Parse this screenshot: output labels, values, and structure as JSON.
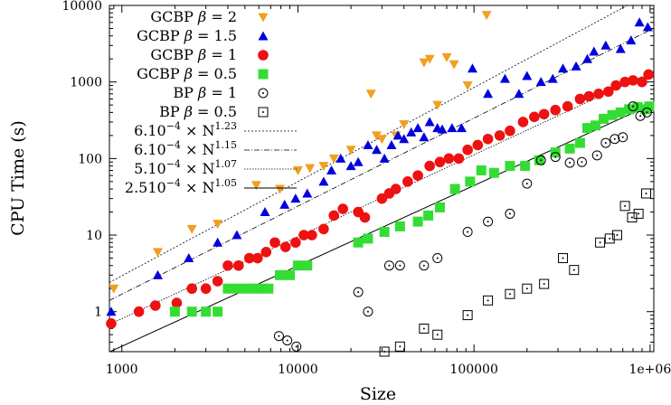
{
  "chart_data": {
    "type": "scatter",
    "title": "",
    "xlabel": "Size",
    "ylabel": "CPU Time (s)",
    "x_scale": "log",
    "y_scale": "log",
    "xlim": [
      850,
      1050000
    ],
    "ylim": [
      0.3,
      10000
    ],
    "x_ticks": [
      {
        "value": 1000,
        "label": "1000"
      },
      {
        "value": 10000,
        "label": "10000"
      },
      {
        "value": 100000,
        "label": "100000"
      },
      {
        "value": 1000000,
        "label": "1e+06"
      }
    ],
    "y_ticks": [
      {
        "value": 1,
        "label": "1"
      },
      {
        "value": 10,
        "label": "10"
      },
      {
        "value": 100,
        "label": "100"
      },
      {
        "value": 1000,
        "label": "1000"
      },
      {
        "value": 10000,
        "label": "10000"
      }
    ],
    "grid": false,
    "legend_position": "top-left",
    "series": [
      {
        "name": "GCBP β = 2",
        "label_main": "GCBP ",
        "label_beta": "β",
        "label_val": " = 2",
        "marker": "triangle-down",
        "color": "#f0a020",
        "points": [
          [
            900,
            2
          ],
          [
            1600,
            6
          ],
          [
            2500,
            12
          ],
          [
            3500,
            14
          ],
          [
            5800,
            45
          ],
          [
            7900,
            40
          ],
          [
            10000,
            70
          ],
          [
            11700,
            75
          ],
          [
            14000,
            80
          ],
          [
            16000,
            100
          ],
          [
            20000,
            130
          ],
          [
            26000,
            700
          ],
          [
            28000,
            200
          ],
          [
            30000,
            180
          ],
          [
            36000,
            200
          ],
          [
            40000,
            280
          ],
          [
            52000,
            1800
          ],
          [
            56000,
            2000
          ],
          [
            62000,
            500
          ],
          [
            70000,
            2100
          ],
          [
            77000,
            1700
          ],
          [
            92000,
            900
          ],
          [
            118000,
            7500
          ]
        ]
      },
      {
        "name": "GCBP β = 1.5",
        "label_main": "GCBP ",
        "label_beta": "β",
        "label_val": " = 1.5",
        "marker": "triangle-up",
        "color": "#0000dd",
        "points": [
          [
            870,
            1
          ],
          [
            1600,
            3
          ],
          [
            2400,
            5
          ],
          [
            3500,
            8
          ],
          [
            4500,
            10
          ],
          [
            6500,
            20
          ],
          [
            8400,
            25
          ],
          [
            9700,
            30
          ],
          [
            11300,
            35
          ],
          [
            14000,
            50
          ],
          [
            15500,
            70
          ],
          [
            17500,
            100
          ],
          [
            20000,
            80
          ],
          [
            22000,
            90
          ],
          [
            25000,
            150
          ],
          [
            28000,
            130
          ],
          [
            31000,
            100
          ],
          [
            34000,
            150
          ],
          [
            37000,
            200
          ],
          [
            40000,
            180
          ],
          [
            44000,
            220
          ],
          [
            48000,
            250
          ],
          [
            52000,
            190
          ],
          [
            56000,
            300
          ],
          [
            62000,
            250
          ],
          [
            66000,
            240
          ],
          [
            75000,
            250
          ],
          [
            85000,
            250
          ],
          [
            98000,
            1500
          ],
          [
            120000,
            700
          ],
          [
            150000,
            1100
          ],
          [
            180000,
            700
          ],
          [
            200000,
            1200
          ],
          [
            240000,
            1000
          ],
          [
            280000,
            1100
          ],
          [
            320000,
            1500
          ],
          [
            380000,
            1600
          ],
          [
            440000,
            2000
          ],
          [
            480000,
            2500
          ],
          [
            560000,
            3000
          ],
          [
            680000,
            2700
          ],
          [
            780000,
            3500
          ],
          [
            870000,
            6000
          ],
          [
            970000,
            5200
          ]
        ]
      },
      {
        "name": "GCBP β = 1",
        "label_main": "GCBP ",
        "label_beta": "β",
        "label_val": " = 1",
        "marker": "circle",
        "color": "#ee1111",
        "points": [
          [
            870,
            0.7
          ],
          [
            1250,
            1
          ],
          [
            1550,
            1.2
          ],
          [
            2050,
            1.3
          ],
          [
            2500,
            2
          ],
          [
            3000,
            2
          ],
          [
            3500,
            2.5
          ],
          [
            4000,
            4
          ],
          [
            4600,
            4
          ],
          [
            5300,
            5
          ],
          [
            5900,
            5
          ],
          [
            6600,
            6
          ],
          [
            7400,
            8
          ],
          [
            8500,
            7
          ],
          [
            9700,
            8
          ],
          [
            10800,
            10
          ],
          [
            12000,
            10
          ],
          [
            14000,
            12
          ],
          [
            16000,
            18
          ],
          [
            18000,
            22
          ],
          [
            22000,
            20
          ],
          [
            24000,
            17
          ],
          [
            30000,
            30
          ],
          [
            33000,
            35
          ],
          [
            36000,
            40
          ],
          [
            42000,
            50
          ],
          [
            48000,
            60
          ],
          [
            56000,
            80
          ],
          [
            64000,
            90
          ],
          [
            72000,
            100
          ],
          [
            82000,
            100
          ],
          [
            92000,
            130
          ],
          [
            105000,
            150
          ],
          [
            120000,
            180
          ],
          [
            140000,
            200
          ],
          [
            160000,
            230
          ],
          [
            190000,
            300
          ],
          [
            220000,
            350
          ],
          [
            250000,
            380
          ],
          [
            290000,
            430
          ],
          [
            340000,
            480
          ],
          [
            400000,
            600
          ],
          [
            450000,
            650
          ],
          [
            510000,
            700
          ],
          [
            580000,
            750
          ],
          [
            640000,
            900
          ],
          [
            720000,
            1000
          ],
          [
            800000,
            1050
          ],
          [
            900000,
            1000
          ],
          [
            980000,
            1250
          ]
        ]
      },
      {
        "name": "GCBP β = 0.5",
        "label_main": "GCBP ",
        "label_beta": "β",
        "label_val": " = 0.5",
        "marker": "square",
        "color": "#33dd33",
        "points": [
          [
            2000,
            1
          ],
          [
            2500,
            1
          ],
          [
            3000,
            1
          ],
          [
            3500,
            1
          ],
          [
            4000,
            2
          ],
          [
            4500,
            2
          ],
          [
            5100,
            2
          ],
          [
            5600,
            2
          ],
          [
            6200,
            2
          ],
          [
            6800,
            2
          ],
          [
            7900,
            3
          ],
          [
            9000,
            3
          ],
          [
            10000,
            4
          ],
          [
            11300,
            4
          ],
          [
            22000,
            8
          ],
          [
            25000,
            9
          ],
          [
            31000,
            11
          ],
          [
            38000,
            13
          ],
          [
            48000,
            15
          ],
          [
            55000,
            18
          ],
          [
            64000,
            23
          ],
          [
            78000,
            40
          ],
          [
            95000,
            50
          ],
          [
            110000,
            70
          ],
          [
            130000,
            65
          ],
          [
            160000,
            80
          ],
          [
            195000,
            80
          ],
          [
            235000,
            95
          ],
          [
            290000,
            120
          ],
          [
            350000,
            135
          ],
          [
            400000,
            160
          ],
          [
            440000,
            250
          ],
          [
            490000,
            270
          ],
          [
            545000,
            330
          ],
          [
            610000,
            370
          ],
          [
            680000,
            400
          ],
          [
            760000,
            440
          ],
          [
            850000,
            470
          ],
          [
            940000,
            440
          ],
          [
            990000,
            480
          ]
        ]
      },
      {
        "name": "BP β = 1",
        "label_main": "BP ",
        "label_beta": "β",
        "label_val": " = 1",
        "marker": "circle-dot",
        "color": "#000000",
        "points": [
          [
            7800,
            0.48
          ],
          [
            8700,
            0.42
          ],
          [
            9800,
            0.35
          ],
          [
            22000,
            1.8
          ],
          [
            25000,
            1
          ],
          [
            33000,
            4
          ],
          [
            38000,
            4
          ],
          [
            52000,
            4
          ],
          [
            62000,
            5
          ],
          [
            92000,
            11
          ],
          [
            120000,
            15
          ],
          [
            160000,
            19
          ],
          [
            200000,
            47
          ],
          [
            240000,
            95
          ],
          [
            290000,
            105
          ],
          [
            350000,
            88
          ],
          [
            410000,
            90
          ],
          [
            500000,
            110
          ],
          [
            560000,
            160
          ],
          [
            630000,
            180
          ],
          [
            700000,
            190
          ],
          [
            800000,
            480
          ],
          [
            880000,
            360
          ],
          [
            960000,
            400
          ]
        ]
      },
      {
        "name": "BP β = 0.5",
        "label_main": "BP ",
        "label_beta": "β",
        "label_val": " = 0.5",
        "marker": "square-dot",
        "color": "#000000",
        "points": [
          [
            31000,
            0.3
          ],
          [
            38000,
            0.35
          ],
          [
            52000,
            0.6
          ],
          [
            62000,
            0.5
          ],
          [
            92000,
            0.9
          ],
          [
            120000,
            1.4
          ],
          [
            160000,
            1.7
          ],
          [
            200000,
            2
          ],
          [
            250000,
            2.3
          ],
          [
            320000,
            5
          ],
          [
            370000,
            3.5
          ],
          [
            520000,
            8
          ],
          [
            590000,
            9
          ],
          [
            650000,
            10
          ],
          [
            720000,
            24
          ],
          [
            790000,
            17
          ],
          [
            860000,
            19
          ],
          [
            950000,
            35
          ]
        ]
      }
    ],
    "fits": [
      {
        "name": "6.10⁻⁴ × N^1.23",
        "coef_text": "6.10",
        "coef_exp": "−4",
        "times": " × N",
        "n_exp": "1.23",
        "coef": 0.0006,
        "exponent": 1.23,
        "dash": "2,2",
        "width": 0.8
      },
      {
        "name": "6.10⁻⁴ × N^1.15",
        "coef_text": "6.10",
        "coef_exp": "−4",
        "times": " × N",
        "n_exp": "1.15",
        "coef": 0.0006,
        "exponent": 1.15,
        "dash": "6,2,1,2",
        "width": 0.8
      },
      {
        "name": "5.10⁻⁴ × N^1.07",
        "coef_text": "5.10",
        "coef_exp": "−4",
        "times": " × N",
        "n_exp": "1.07",
        "coef": 0.0005,
        "exponent": 1.07,
        "dash": "1.5,1.5",
        "width": 0.8
      },
      {
        "name": "2.510⁻⁴ × N^1.05",
        "coef_text": "2.510",
        "coef_exp": "−4",
        "times": " × N",
        "n_exp": "1.05",
        "coef": 0.00025,
        "exponent": 1.05,
        "dash": "",
        "width": 1
      }
    ]
  }
}
